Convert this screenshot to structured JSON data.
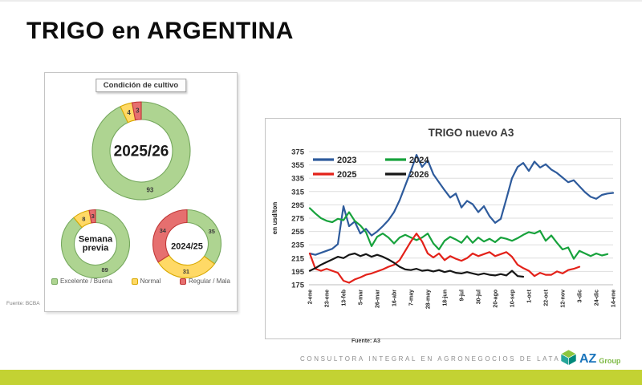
{
  "slide": {
    "title": "TRIGO en ARGENTINA",
    "accent_bar_color": "#c3d233"
  },
  "crop_panel": {
    "header": "Condición de cultivo",
    "source": "Fuente: BCBA",
    "categories": [
      {
        "key": "excelente_buena",
        "label": "Excelente / Buena",
        "fill": "#aed491",
        "border": "#76a85e"
      },
      {
        "key": "normal",
        "label": "Normal",
        "fill": "#ffd966",
        "border": "#d8a800"
      },
      {
        "key": "regular_mala",
        "label": "Regular / Mala",
        "fill": "#e66f6f",
        "border": "#c03636"
      }
    ],
    "donuts": [
      {
        "id": "donut-2025-26",
        "center_label": "2025/26",
        "values": {
          "excelente_buena": 93,
          "normal": 4,
          "regular_mala": 3
        }
      },
      {
        "id": "donut-semana-previa",
        "center_label": "Semana previa",
        "values": {
          "excelente_buena": 89,
          "normal": 8,
          "regular_mala": 3
        }
      },
      {
        "id": "donut-2024-25",
        "center_label": "2024/25",
        "values": {
          "excelente_buena": 35,
          "normal": 31,
          "regular_mala": 34
        }
      }
    ]
  },
  "chart_data": {
    "type": "line",
    "title": "TRIGO nuevo A3",
    "ylabel": "en usd/ton",
    "ylim": [
      175,
      375
    ],
    "y_ticks": [
      375,
      355,
      335,
      315,
      295,
      275,
      255,
      235,
      215,
      195,
      175
    ],
    "x_tick_labels": [
      "2-ene",
      "23-ene",
      "13-feb",
      "5-mar",
      "26-mar",
      "16-abr",
      "7-may",
      "28-may",
      "18-jun",
      "9-jul",
      "30-jul",
      "20-ago",
      "10-sep",
      "1-oct",
      "22-oct",
      "12-nov",
      "3-dic",
      "24-dic",
      "14-ene"
    ],
    "x_days_per_tick": 21,
    "x_total_days": 378,
    "grid": true,
    "legend_position": "top-left-inside",
    "source": "Fuente: A3",
    "series": [
      {
        "name": "2023",
        "color": "#2e5b9c",
        "start_day": 0,
        "step_days": 7,
        "values": [
          222,
          220,
          223,
          226,
          229,
          236,
          293,
          263,
          270,
          252,
          259,
          249,
          255,
          263,
          272,
          284,
          302,
          324,
          346,
          370,
          352,
          362,
          341,
          329,
          317,
          306,
          312,
          291,
          301,
          296,
          284,
          293,
          278,
          268,
          274,
          304,
          335,
          352,
          358,
          346,
          360,
          351,
          356,
          348,
          343,
          336,
          329,
          332,
          323,
          314,
          307,
          304,
          310,
          312,
          313
        ]
      },
      {
        "name": "2024",
        "color": "#17a23c",
        "start_day": 0,
        "step_days": 7,
        "values": [
          290,
          282,
          275,
          271,
          269,
          274,
          272,
          284,
          271,
          264,
          254,
          233,
          247,
          252,
          246,
          237,
          246,
          250,
          246,
          242,
          246,
          252,
          237,
          228,
          241,
          247,
          243,
          238,
          248,
          238,
          246,
          240,
          244,
          239,
          246,
          244,
          241,
          245,
          250,
          254,
          252,
          256,
          241,
          249,
          238,
          228,
          231,
          214,
          226,
          222,
          218,
          222,
          219,
          221
        ]
      },
      {
        "name": "2025",
        "color": "#e32119",
        "start_day": 0,
        "step_days": 7,
        "values": [
          222,
          199,
          196,
          199,
          196,
          193,
          181,
          178,
          183,
          186,
          190,
          192,
          195,
          198,
          202,
          205,
          212,
          226,
          240,
          252,
          240,
          222,
          216,
          222,
          212,
          218,
          214,
          211,
          215,
          222,
          218,
          221,
          224,
          218,
          221,
          224,
          217,
          205,
          200,
          196,
          188,
          193,
          190,
          190,
          195,
          192,
          197,
          199,
          202
        ]
      },
      {
        "name": "2026",
        "color": "#161616",
        "start_day": 0,
        "step_days": 7,
        "values": [
          196,
          200,
          205,
          209,
          213,
          217,
          215,
          220,
          222,
          218,
          221,
          217,
          220,
          217,
          213,
          208,
          202,
          198,
          197,
          199,
          196,
          197,
          195,
          197,
          194,
          196,
          193,
          192,
          194,
          192,
          190,
          192,
          190,
          189,
          191,
          189,
          196,
          188,
          187
        ]
      }
    ]
  },
  "footer": {
    "tagline": "CONSULTORA INTEGRAL EN AGRONEGOCIOS DE LATAM",
    "logo": {
      "text_primary": "AZ",
      "text_secondary": "Group",
      "primary_color": "#1b75bc",
      "secondary_color": "#7cb842",
      "icon": "cube-icon",
      "icon_colors": [
        "#8cc63f",
        "#26a69a",
        "#00897b"
      ]
    }
  }
}
